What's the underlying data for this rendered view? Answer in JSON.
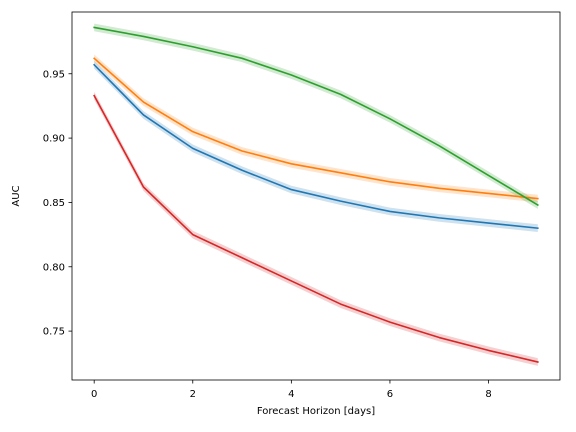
{
  "chart_data": {
    "type": "line",
    "xlabel": "Forecast Horizon [days]",
    "ylabel": "AUC",
    "xlim": [
      -0.45,
      9.45
    ],
    "ylim": [
      0.712,
      0.998
    ],
    "xticks": [
      0,
      2,
      4,
      6,
      8
    ],
    "yticks": [
      0.75,
      0.8,
      0.85,
      0.9,
      0.95
    ],
    "ytick_labels": [
      "0.75",
      "0.80",
      "0.85",
      "0.90",
      "0.95"
    ],
    "grid": false,
    "legend": "none",
    "x": [
      0,
      1,
      2,
      3,
      4,
      5,
      6,
      7,
      8,
      9
    ],
    "series": [
      {
        "color": "#1f77b4",
        "values": [
          0.957,
          0.918,
          0.892,
          0.875,
          0.86,
          0.851,
          0.843,
          0.838,
          0.834,
          0.83
        ],
        "band": 0.003
      },
      {
        "color": "#ff7f0e",
        "values": [
          0.962,
          0.928,
          0.905,
          0.89,
          0.88,
          0.873,
          0.866,
          0.861,
          0.857,
          0.853
        ],
        "band": 0.003
      },
      {
        "color": "#2ca02c",
        "values": [
          0.986,
          0.979,
          0.971,
          0.962,
          0.949,
          0.934,
          0.915,
          0.894,
          0.871,
          0.848
        ],
        "band": 0.003
      },
      {
        "color": "#d62728",
        "values": [
          0.933,
          0.862,
          0.825,
          0.807,
          0.789,
          0.771,
          0.757,
          0.745,
          0.735,
          0.726
        ],
        "band": 0.003
      }
    ]
  }
}
